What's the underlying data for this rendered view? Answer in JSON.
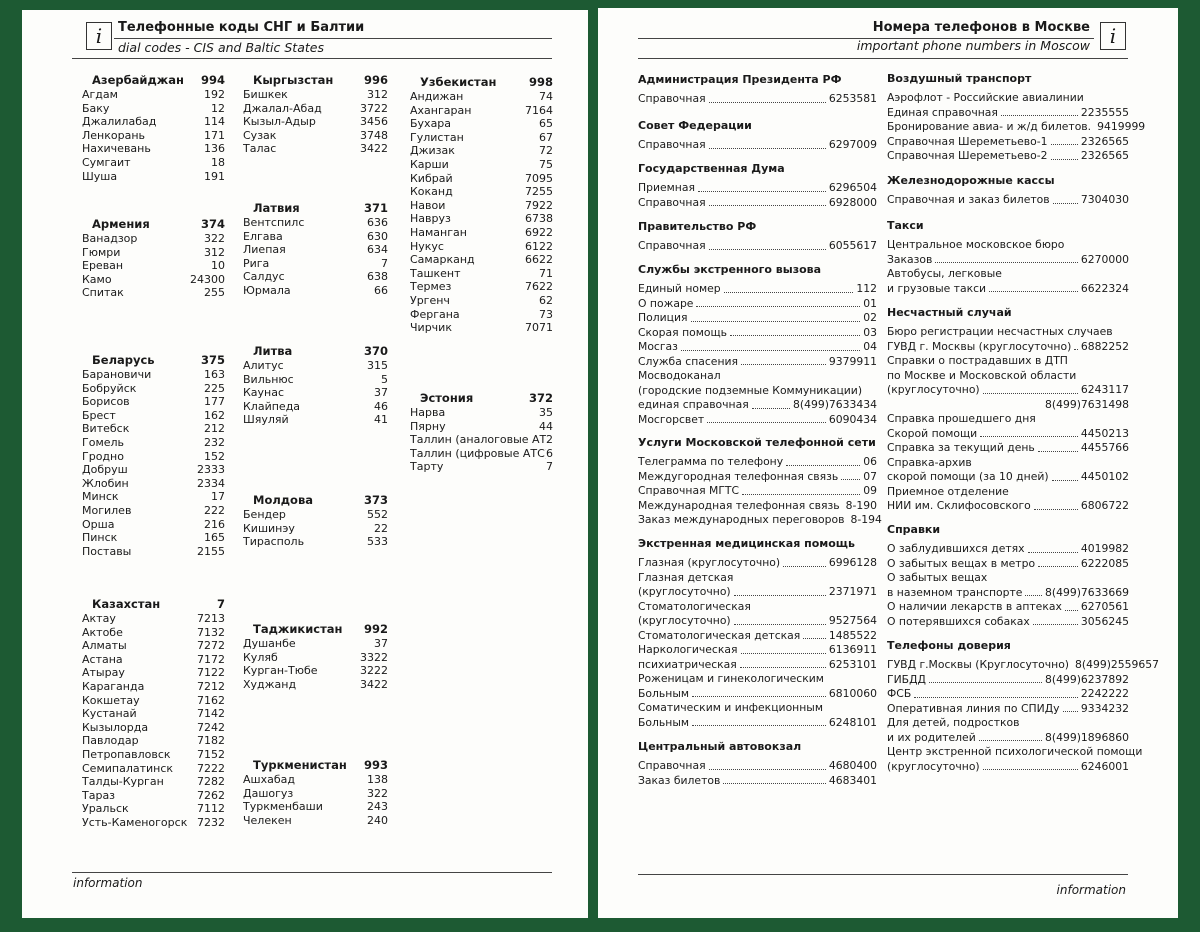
{
  "left_page": {
    "header": {
      "title": "Телефонные коды СНГ и Балтии",
      "subtitle": "dial codes - CIS and Baltic States"
    },
    "columns": [
      [
        {
          "name": "Азербайджан",
          "code": "994",
          "cities": [
            [
              "Агдам",
              "192"
            ],
            [
              "Баку",
              "12"
            ],
            [
              "Джалилабад",
              "114"
            ],
            [
              "Ленкорань",
              "171"
            ],
            [
              "Нахичевань",
              "136"
            ],
            [
              "Сумгаит",
              "18"
            ],
            [
              "Шуша",
              "191"
            ]
          ]
        },
        {
          "name": "Армения",
          "code": "374",
          "cities": [
            [
              "Ванадзор",
              "322"
            ],
            [
              "Гюмри",
              "312"
            ],
            [
              "Ереван",
              "10"
            ],
            [
              "Камо",
              "24300"
            ],
            [
              "Спитак",
              "255"
            ]
          ]
        },
        {
          "name": "Беларусь",
          "code": "375",
          "cities": [
            [
              "Барановичи",
              "163"
            ],
            [
              "Бобруйск",
              "225"
            ],
            [
              "Борисов",
              "177"
            ],
            [
              "Брест",
              "162"
            ],
            [
              "Витебск",
              "212"
            ],
            [
              "Гомель",
              "232"
            ],
            [
              "Гродно",
              "152"
            ],
            [
              "Добруш",
              "2333"
            ],
            [
              "Жлобин",
              "2334"
            ],
            [
              "Минск",
              "17"
            ],
            [
              "Могилев",
              "222"
            ],
            [
              "Орша",
              "216"
            ],
            [
              "Пинск",
              "165"
            ],
            [
              "Поставы",
              "2155"
            ]
          ]
        },
        {
          "name": "Казахстан",
          "code": "7",
          "cities": [
            [
              "Актау",
              "7213"
            ],
            [
              "Актобе",
              "7132"
            ],
            [
              "Алматы",
              "7272"
            ],
            [
              "Астана",
              "7172"
            ],
            [
              "Атырау",
              "7122"
            ],
            [
              "Караганда",
              "7212"
            ],
            [
              "Кокшетау",
              "7162"
            ],
            [
              "Кустанай",
              "7142"
            ],
            [
              "Кызылорда",
              "7242"
            ],
            [
              "Павлодар",
              "7182"
            ],
            [
              "Петропавловск",
              "7152"
            ],
            [
              "Семипалатинск",
              "7222"
            ],
            [
              "Талды-Курган",
              "7282"
            ],
            [
              "Тараз",
              "7262"
            ],
            [
              "Уральск",
              "7112"
            ],
            [
              "Усть-Каменогорск",
              "7232"
            ]
          ]
        }
      ],
      [
        {
          "name": "Кыргызстан",
          "code": "996",
          "cities": [
            [
              "Бишкек",
              "312"
            ],
            [
              "Джалал-Абад",
              "3722"
            ],
            [
              "Кызыл-Адыр",
              "3456"
            ],
            [
              "Сузак",
              "3748"
            ],
            [
              "Талас",
              "3422"
            ]
          ]
        },
        {
          "name": "Латвия",
          "code": "371",
          "cities": [
            [
              "Вентспилс",
              "636"
            ],
            [
              "Елгава",
              "630"
            ],
            [
              "Лиепая",
              "634"
            ],
            [
              "Рига",
              "7"
            ],
            [
              "Салдус",
              "638"
            ],
            [
              "Юрмала",
              "66"
            ]
          ]
        },
        {
          "name": "Литва",
          "code": "370",
          "cities": [
            [
              "Алитус",
              "315"
            ],
            [
              "Вильнюс",
              "5"
            ],
            [
              "Каунас",
              "37"
            ],
            [
              "Клайпеда",
              "46"
            ],
            [
              "Шяуляй",
              "41"
            ]
          ]
        },
        {
          "name": "Молдова",
          "code": "373",
          "cities": [
            [
              "Бендер",
              "552"
            ],
            [
              "Кишинэу",
              "22"
            ],
            [
              "Тирасполь",
              "533"
            ]
          ]
        },
        {
          "name": "Таджикистан",
          "code": "992",
          "cities": [
            [
              "Душанбе",
              "37"
            ],
            [
              "Куляб",
              "3322"
            ],
            [
              "Курган-Тюбе",
              "3222"
            ],
            [
              "Худжанд",
              "3422"
            ]
          ]
        },
        {
          "name": "Туркменистан",
          "code": "993",
          "cities": [
            [
              "Ашхабад",
              "138"
            ],
            [
              "Дашогуз",
              "322"
            ],
            [
              "Туркменбаши",
              "243"
            ],
            [
              "Челекен",
              "240"
            ]
          ]
        }
      ],
      [
        {
          "name": "Узбекистан",
          "code": "998",
          "cities": [
            [
              "Андижан",
              "74"
            ],
            [
              "Ахангаран",
              "7164"
            ],
            [
              "Бухара",
              "65"
            ],
            [
              "Гулистан",
              "67"
            ],
            [
              "Джизак",
              "72"
            ],
            [
              "Карши",
              "75"
            ],
            [
              "Кибрай",
              "7095"
            ],
            [
              "Коканд",
              "7255"
            ],
            [
              "Навои",
              "7922"
            ],
            [
              "Навруз",
              "6738"
            ],
            [
              "Наманган",
              "6922"
            ],
            [
              "Нукус",
              "6122"
            ],
            [
              "Самарканд",
              "6622"
            ],
            [
              "Ташкент",
              "71"
            ],
            [
              "Термез",
              "7622"
            ],
            [
              "Ургенч",
              "62"
            ],
            [
              "Фергана",
              "73"
            ],
            [
              "Чирчик",
              "7071"
            ]
          ]
        },
        {
          "name": "Эстония",
          "code": "372",
          "cities": [
            [
              "Нарва",
              "35"
            ],
            [
              "Пярну",
              "44"
            ],
            [
              "Таллин (аналоговые АТС)",
              "2"
            ],
            [
              "Таллин (цифровые АТС)",
              "6"
            ],
            [
              "Тарту",
              "7"
            ]
          ]
        }
      ]
    ],
    "footer": "information"
  },
  "right_page": {
    "header": {
      "title": "Номера телефонов в Москве",
      "subtitle": "important phone numbers in Moscow"
    },
    "columns": [
      [
        {
          "title": "Администрация Президента РФ",
          "entries": [
            {
              "label": "Справочная",
              "number": "6253581"
            }
          ]
        },
        {
          "title": "Совет Федерации",
          "entries": [
            {
              "label": "Справочная",
              "number": "6297009"
            }
          ]
        },
        {
          "title": "Государственная Дума",
          "entries": [
            {
              "label": "Приемная",
              "number": "6296504"
            },
            {
              "label": "Справочная",
              "number": "6928000"
            }
          ]
        },
        {
          "title": "Правительство РФ",
          "entries": [
            {
              "label": "Справочная",
              "number": "6055617"
            }
          ]
        },
        {
          "title": "Службы экстренного вызова",
          "entries": [
            {
              "label": "Единый номер",
              "number": "112"
            },
            {
              "label": "О пожаре",
              "number": "01"
            },
            {
              "label": "Полиция",
              "number": "02"
            },
            {
              "label": "Скорая помощь",
              "number": "03"
            },
            {
              "label": "Мосгаз",
              "number": "04"
            },
            {
              "label": "Служба спасения",
              "number": "9379911"
            },
            {
              "label": "Мосводоканал"
            },
            {
              "label": "(городские подземные Коммуникации)"
            },
            {
              "label": "единая справочная",
              "number": "8(499)7633434"
            },
            {
              "label": "Мосгорсвет",
              "number": "6090434"
            }
          ]
        },
        {
          "title": "Услуги Московской телефонной сети",
          "entries": [
            {
              "label": "Телеграмма по телефону",
              "number": "06"
            },
            {
              "label": "Междугородная телефонная связь",
              "number": "07"
            },
            {
              "label": "Справочная МГТС",
              "number": "09"
            },
            {
              "label": "Международная телефонная связь",
              "number": "8-190"
            },
            {
              "label": "Заказ международных переговоров",
              "number": "8-194"
            }
          ]
        },
        {
          "title": "Экстренная медицинская помощь",
          "entries": [
            {
              "label": "Глазная (круглосуточно)",
              "number": "6996128"
            },
            {
              "label": "Глазная детская"
            },
            {
              "label": "(круглосуточно)",
              "number": "2371971"
            },
            {
              "label": "Стоматологическая"
            },
            {
              "label": "(круглосуточно)",
              "number": "9527564"
            },
            {
              "label": "Стоматологическая детская",
              "number": "1485522"
            },
            {
              "label": "Наркологическая",
              "number": "6136911"
            },
            {
              "label": "психиатрическая",
              "number": "6253101"
            },
            {
              "label": "Роженицам и гинекологическим"
            },
            {
              "label": "Больным",
              "number": "6810060"
            },
            {
              "label": "Соматическим и инфекционным"
            },
            {
              "label": "Больным",
              "number": "6248101"
            }
          ]
        },
        {
          "title": "Центральный автовокзал",
          "entries": [
            {
              "label": "Справочная",
              "number": "4680400"
            },
            {
              "label": "Заказ билетов",
              "number": "4683401"
            }
          ]
        }
      ],
      [
        {
          "title": "Воздушный транспорт",
          "entries": [
            {
              "label": "Аэрофлот - Российские авиалинии"
            },
            {
              "label": "Единая справочная",
              "number": "2235555"
            },
            {
              "label": "Бронирование авиа- и ж/д билетов.",
              "number": "9419999"
            },
            {
              "label": "Справочная Шереметьево-1",
              "number": "2326565"
            },
            {
              "label": "Справочная Шереметьево-2",
              "number": "2326565"
            }
          ]
        },
        {
          "title": "Железнодорожные кассы",
          "entries": [
            {
              "label": "Справочная и заказ билетов",
              "number": "7304030"
            }
          ]
        },
        {
          "title": "Такси",
          "entries": [
            {
              "label": "Центральное московское бюро"
            },
            {
              "label": "Заказов",
              "number": "6270000"
            },
            {
              "label": "Автобусы, легковые"
            },
            {
              "label": "и грузовые такси",
              "number": "6622324"
            }
          ]
        },
        {
          "title": "Несчастный случай",
          "entries": [
            {
              "label": "Бюро регистрации несчастных случаев"
            },
            {
              "label": "ГУВД г. Москвы (круглосуточно)",
              "number": "6882252"
            },
            {
              "label": "Справки о пострадавших в ДТП"
            },
            {
              "label": "по Москве и Московской области"
            },
            {
              "label": "(круглосуточно)",
              "number": "6243117"
            },
            {
              "number": "8(499)7631498"
            },
            {
              "label": "Справка прошедшего дня"
            },
            {
              "label": "Скорой помощи",
              "number": "4450213"
            },
            {
              "label": "Справка за текущий день",
              "number": "4455766"
            },
            {
              "label": "Справка-архив"
            },
            {
              "label": "скорой помощи (за 10 дней)",
              "number": "4450102"
            },
            {
              "label": "Приемное отделение"
            },
            {
              "label": "НИИ им. Склифосовского",
              "number": "6806722"
            }
          ]
        },
        {
          "title": "Справки",
          "entries": [
            {
              "label": "О заблудившихся детях",
              "number": "4019982"
            },
            {
              "label": "О забытых вещах в метро",
              "number": "6222085"
            },
            {
              "label": "О забытых вещах"
            },
            {
              "label": "в наземном транспорте",
              "number": "8(499)7633669"
            },
            {
              "label": "О наличии лекарств в аптеках",
              "number": "6270561"
            },
            {
              "label": "О потерявшихся собаках",
              "number": "3056245"
            }
          ]
        },
        {
          "title": "Телефоны доверия",
          "entries": [
            {
              "label": "ГУВД г.Москвы (Круглосуточно)",
              "number": "8(499)2559657"
            },
            {
              "label": "ГИБДД",
              "number": "8(499)6237892"
            },
            {
              "label": "ФСБ",
              "number": "2242222"
            },
            {
              "label": "Оперативная линия по СПИДу",
              "number": "9334232"
            },
            {
              "label": "Для детей, подростков"
            },
            {
              "label": "и их родителей",
              "number": "8(499)1896860"
            },
            {
              "label": "Центр экстренной психологической помощи"
            },
            {
              "label": "(круглосуточно)",
              "number": "6246001"
            }
          ]
        }
      ]
    ],
    "footer": "information"
  }
}
